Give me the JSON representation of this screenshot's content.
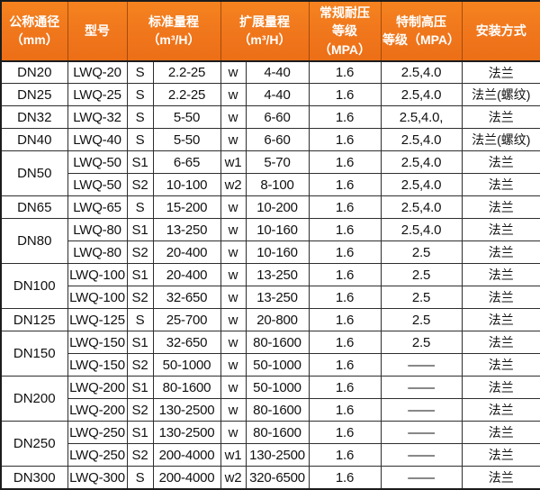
{
  "colors": {
    "header_bg": "#f0761c",
    "header_bg_top": "#f5831f",
    "header_bg_bottom": "#ec6f16",
    "header_text": "#ffffff",
    "grid_line": "#2e2e2e",
    "outer_border": "#1c1c1c",
    "cell_bg": "#ffffff",
    "cell_text": "#111111"
  },
  "table": {
    "header": {
      "dn": {
        "line1": "公称通径",
        "line2": "（mm）"
      },
      "model": {
        "line1": "型号"
      },
      "std": {
        "line1": "标准量程",
        "line2": "（m³/H）"
      },
      "ext": {
        "line1": "扩展量程",
        "line2": "（m³/H）"
      },
      "normal": {
        "line1": "常规耐压",
        "line2": "等级（MPA）"
      },
      "high": {
        "line1": "特制高压",
        "line2": "等级（MPA）"
      },
      "install": {
        "line1": "安装方式"
      }
    },
    "column_keys": [
      "model",
      "s",
      "std",
      "w",
      "ext",
      "normal",
      "high",
      "install"
    ],
    "rows": [
      {
        "dn": "DN20",
        "span": 1,
        "model": "LWQ-20",
        "s": "S",
        "std": "2.2-25",
        "w": "w",
        "ext": "4-40",
        "normal": "1.6",
        "high": "2.5,4.0",
        "install": "法兰"
      },
      {
        "dn": "DN25",
        "span": 1,
        "model": "LWQ-25",
        "s": "S",
        "std": "2.2-25",
        "w": "w",
        "ext": "4-40",
        "normal": "1.6",
        "high": "2.5,4.0",
        "install": "法兰(螺纹)"
      },
      {
        "dn": "DN32",
        "span": 1,
        "model": "LWQ-32",
        "s": "S",
        "std": "5-50",
        "w": "w",
        "ext": "6-60",
        "normal": "1.6",
        "high": "2.5,4.0,",
        "install": "法兰"
      },
      {
        "dn": "DN40",
        "span": 1,
        "model": "LWQ-40",
        "s": "S",
        "std": "5-50",
        "w": "w",
        "ext": "6-60",
        "normal": "1.6",
        "high": "2.5,4.0",
        "install": "法兰(螺纹)"
      },
      {
        "dn": "DN50",
        "span": 2,
        "model": "LWQ-50",
        "s": "S1",
        "std": "6-65",
        "w": "w1",
        "ext": "5-70",
        "normal": "1.6",
        "high": "2.5,4.0",
        "install": "法兰"
      },
      {
        "model": "LWQ-50",
        "s": "S2",
        "std": "10-100",
        "w": "w2",
        "ext": "8-100",
        "normal": "1.6",
        "high": "2.5,4.0",
        "install": "法兰"
      },
      {
        "dn": "DN65",
        "span": 1,
        "model": "LWQ-65",
        "s": "S",
        "std": "15-200",
        "w": "w",
        "ext": "10-200",
        "normal": "1.6",
        "high": "2.5,4.0",
        "install": "法兰"
      },
      {
        "dn": "DN80",
        "span": 2,
        "model": "LWQ-80",
        "s": "S1",
        "std": "13-250",
        "w": "w",
        "ext": "10-160",
        "normal": "1.6",
        "high": "2.5,4.0",
        "install": "法兰"
      },
      {
        "model": "LWQ-80",
        "s": "S2",
        "std": "20-400",
        "w": "w",
        "ext": "10-160",
        "normal": "1.6",
        "high": "2.5",
        "install": "法兰"
      },
      {
        "dn": "DN100",
        "span": 2,
        "model": "LWQ-100",
        "s": "S1",
        "std": "20-400",
        "w": "w",
        "ext": "13-250",
        "normal": "1.6",
        "high": "2.5",
        "install": "法兰"
      },
      {
        "model": "LWQ-100",
        "s": "S2",
        "std": "32-650",
        "w": "w",
        "ext": "13-250",
        "normal": "1.6",
        "high": "2.5",
        "install": "法兰"
      },
      {
        "dn": "DN125",
        "span": 1,
        "model": "LWQ-125",
        "s": "S",
        "std": "25-700",
        "w": "w",
        "ext": "20-800",
        "normal": "1.6",
        "high": "2.5",
        "install": "法兰"
      },
      {
        "dn": "DN150",
        "span": 2,
        "model": "LWQ-150",
        "s": "S1",
        "std": "32-650",
        "w": "w",
        "ext": "80-1600",
        "normal": "1.6",
        "high": "2.5",
        "install": "法兰"
      },
      {
        "model": "LWQ-150",
        "s": "S2",
        "std": "50-1000",
        "w": "w",
        "ext": "50-1000",
        "normal": "1.6",
        "high": "——",
        "install": "法兰"
      },
      {
        "dn": "DN200",
        "span": 2,
        "model": "LWQ-200",
        "s": "S1",
        "std": "80-1600",
        "w": "w",
        "ext": "50-1000",
        "normal": "1.6",
        "high": "——",
        "install": "法兰"
      },
      {
        "model": "LWQ-200",
        "s": "S2",
        "std": "130-2500",
        "w": "w",
        "ext": "80-1600",
        "normal": "1.6",
        "high": "——",
        "install": "法兰"
      },
      {
        "dn": "DN250",
        "span": 2,
        "model": "LWQ-250",
        "s": "S1",
        "std": "130-2500",
        "w": "w",
        "ext": "80-1600",
        "normal": "1.6",
        "high": "——",
        "install": "法兰"
      },
      {
        "model": "LWQ-250",
        "s": "S2",
        "std": "200-4000",
        "w": "w1",
        "ext": "130-2500",
        "normal": "1.6",
        "high": "——",
        "install": "法兰"
      },
      {
        "dn": "DN300",
        "span": 1,
        "model": "LWQ-300",
        "s": "S",
        "std": "200-4000",
        "w": "w2",
        "ext": "320-6500",
        "normal": "1.6",
        "high": "——",
        "install": "法兰"
      }
    ]
  }
}
